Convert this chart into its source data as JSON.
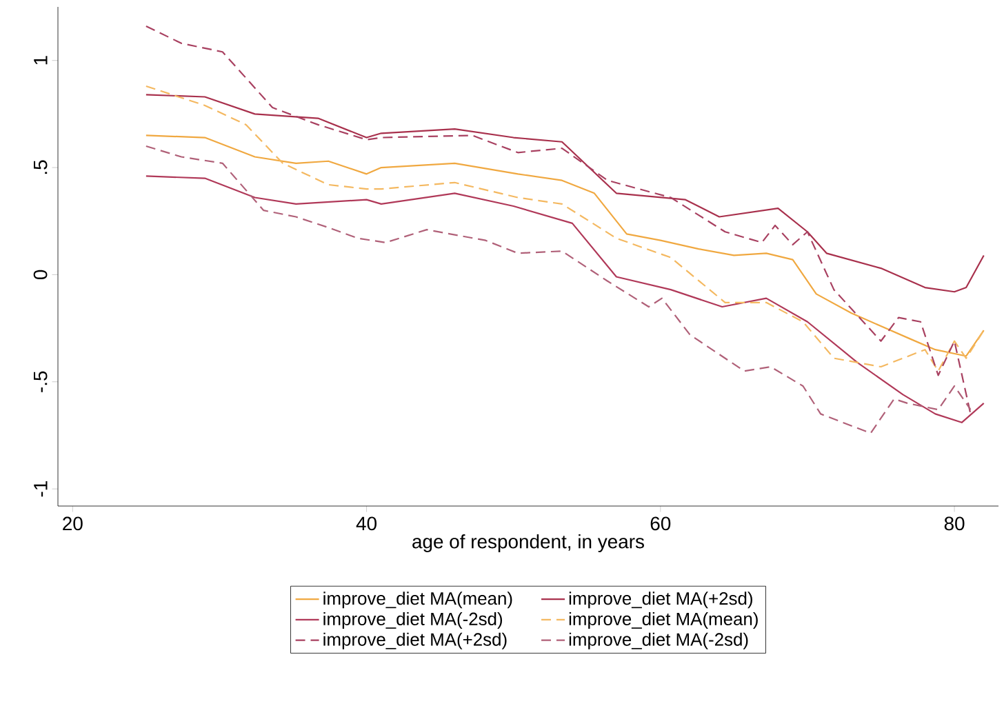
{
  "chart_data": {
    "type": "line",
    "xlabel": "age of respondent, in years",
    "xlim": [
      19,
      83
    ],
    "ylim": [
      -1.08,
      1.25
    ],
    "xticks": [
      20,
      40,
      60,
      80
    ],
    "yticks": [
      {
        "value": -1,
        "label": "-1"
      },
      {
        "value": -0.5,
        "label": "-.5"
      },
      {
        "value": 0,
        "label": "0"
      },
      {
        "value": 0.5,
        "label": ".5"
      },
      {
        "value": 1,
        "label": "1"
      }
    ],
    "grid": false,
    "legend": "bottom",
    "marker": "none",
    "series": [
      {
        "name": "improve_diet MA(mean)",
        "color": "#f0a840",
        "line_style": "solid",
        "x": [
          25,
          29,
          32.4,
          35.2,
          37.4,
          40,
          41,
          46,
          50.3,
          53.3,
          55.5,
          57.7,
          60,
          62.6,
          65,
          67.2,
          69,
          70.6,
          73,
          75,
          77,
          78.7,
          80.8,
          82
        ],
        "values": [
          0.65,
          0.64,
          0.55,
          0.52,
          0.53,
          0.47,
          0.5,
          0.52,
          0.47,
          0.44,
          0.38,
          0.19,
          0.16,
          0.12,
          0.09,
          0.1,
          0.07,
          -0.09,
          -0.18,
          -0.24,
          -0.3,
          -0.35,
          -0.38,
          -0.26
        ]
      },
      {
        "name": "improve_diet MA(+2sd)",
        "color": "#a8304c",
        "line_style": "solid",
        "x": [
          25,
          29,
          32.4,
          36.7,
          40,
          41,
          46,
          50,
          53.3,
          57,
          61.7,
          64,
          68,
          70,
          71.3,
          75,
          78,
          80,
          80.8,
          82
        ],
        "values": [
          0.84,
          0.83,
          0.75,
          0.73,
          0.64,
          0.66,
          0.68,
          0.64,
          0.62,
          0.38,
          0.35,
          0.27,
          0.31,
          0.2,
          0.1,
          0.03,
          -0.06,
          -0.08,
          -0.06,
          0.09
        ]
      },
      {
        "name": "improve_diet MA(-2sd)",
        "color": "#b03858",
        "line_style": "solid",
        "x": [
          25,
          29,
          32.4,
          35.2,
          40,
          41,
          46,
          50,
          54,
          57,
          60.7,
          64.2,
          67.2,
          70,
          73.4,
          76.5,
          78.7,
          80.5,
          82
        ],
        "values": [
          0.46,
          0.45,
          0.36,
          0.33,
          0.35,
          0.33,
          0.38,
          0.32,
          0.24,
          -0.01,
          -0.07,
          -0.15,
          -0.11,
          -0.22,
          -0.41,
          -0.56,
          -0.65,
          -0.69,
          -0.6
        ]
      },
      {
        "name": "improve_diet MA(mean)",
        "color": "#f4b860",
        "line_style": "dashed",
        "x": [
          25,
          29,
          31.8,
          34.3,
          37.4,
          40,
          41,
          46,
          50.3,
          53.3,
          57,
          60.7,
          64.4,
          67.2,
          69.7,
          71.8,
          75,
          78,
          78.9,
          80,
          80.8,
          82
        ],
        "values": [
          0.88,
          0.79,
          0.7,
          0.52,
          0.42,
          0.4,
          0.4,
          0.43,
          0.36,
          0.33,
          0.17,
          0.08,
          -0.13,
          -0.13,
          -0.22,
          -0.39,
          -0.43,
          -0.35,
          -0.45,
          -0.31,
          -0.39,
          -0.26
        ]
      },
      {
        "name": "improve_diet MA(+2sd)",
        "color": "#a84060",
        "line_style": "dashed",
        "x": [
          25,
          27.4,
          30.2,
          33.6,
          36.7,
          40,
          41,
          47.2,
          50.3,
          53.3,
          56.4,
          60.7,
          64.4,
          66.9,
          67.8,
          69,
          70,
          71.8,
          75,
          76.2,
          77.7,
          78.9,
          80,
          81.1
        ],
        "values": [
          1.16,
          1.08,
          1.04,
          0.78,
          0.7,
          0.63,
          0.64,
          0.65,
          0.57,
          0.59,
          0.44,
          0.36,
          0.2,
          0.15,
          0.23,
          0.14,
          0.2,
          -0.07,
          -0.31,
          -0.2,
          -0.22,
          -0.47,
          -0.31,
          -0.65
        ]
      },
      {
        "name": "improve_diet MA(-2sd)",
        "color": "#b06078",
        "line_style": "dashed",
        "x": [
          25,
          27.4,
          30.2,
          33,
          35.2,
          37.4,
          39.4,
          41.3,
          44.1,
          48.1,
          50.3,
          53.3,
          56.4,
          59.2,
          60.1,
          62,
          65.7,
          67.5,
          69.7,
          70.9,
          74.3,
          75.9,
          76.8,
          78.9,
          80,
          81.1
        ],
        "values": [
          0.6,
          0.55,
          0.52,
          0.3,
          0.27,
          0.22,
          0.17,
          0.15,
          0.21,
          0.16,
          0.1,
          0.11,
          -0.03,
          -0.15,
          -0.11,
          -0.28,
          -0.45,
          -0.43,
          -0.52,
          -0.65,
          -0.74,
          -0.58,
          -0.6,
          -0.63,
          -0.52,
          -0.63
        ]
      }
    ]
  }
}
